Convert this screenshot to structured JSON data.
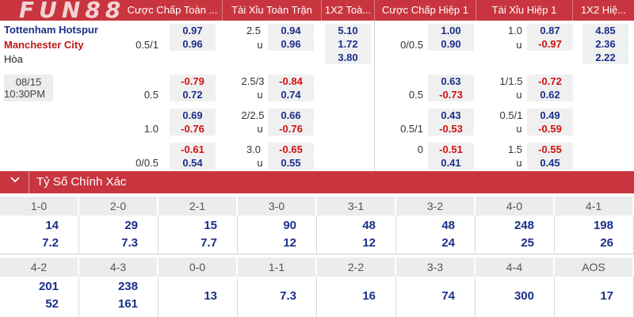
{
  "header": {
    "logo": "FUN88",
    "columns": [
      "Cược Chấp Toàn ...",
      "Tài Xỉu Toàn Trận",
      "1X2 Toà...",
      "Cược Chấp Hiệp 1",
      "Tài Xỉu Hiệp 1",
      "1X2 Hiệ..."
    ]
  },
  "match": {
    "home": "Tottenham Hotspur",
    "away": "Manchester City",
    "draw_label": "Hòa",
    "date": "08/15",
    "time": "10:30PM"
  },
  "odds_rows": [
    {
      "ft_hdp": {
        "line": "",
        "top": "0.97",
        "bot": "0.96",
        "top_line": "",
        "bot_line": "0.5/1"
      },
      "ft_ou": {
        "line": "2.5",
        "top": "0.94",
        "bot": "0.96",
        "u": "u"
      },
      "ft_1x2": [
        "5.10",
        "1.72",
        "3.80"
      ],
      "h1_hdp": {
        "top": "1.00",
        "bot": "0.90",
        "bot_line": "0/0.5"
      },
      "h1_ou": {
        "line": "1.0",
        "top": "0.87",
        "bot": "-0.97",
        "u": "u"
      },
      "h1_1x2": [
        "4.85",
        "2.36",
        "2.22"
      ]
    },
    {
      "ft_hdp": {
        "top": "-0.79",
        "bot": "0.72",
        "bot_line": "0.5"
      },
      "ft_ou": {
        "line": "2.5/3",
        "top": "-0.84",
        "bot": "0.74",
        "u": "u"
      },
      "h1_hdp": {
        "top": "0.63",
        "bot": "-0.73",
        "bot_line": "0.5"
      },
      "h1_ou": {
        "line": "1/1.5",
        "top": "-0.72",
        "bot": "0.62",
        "u": "u"
      }
    },
    {
      "ft_hdp": {
        "top": "0.69",
        "bot": "-0.76",
        "bot_line": "1.0"
      },
      "ft_ou": {
        "line": "2/2.5",
        "top": "0.66",
        "bot": "-0.76",
        "u": "u"
      },
      "h1_hdp": {
        "top": "0.43",
        "bot": "-0.53",
        "bot_line": "0.5/1"
      },
      "h1_ou": {
        "line": "0.5/1",
        "top": "0.49",
        "bot": "-0.59",
        "u": "u"
      }
    },
    {
      "ft_hdp": {
        "top": "-0.61",
        "bot": "0.54",
        "bot_line": "0/0.5"
      },
      "ft_ou": {
        "line": "3.0",
        "top": "-0.65",
        "bot": "0.55",
        "u": "u"
      },
      "h1_hdp": {
        "top": "-0.51",
        "bot": "0.41",
        "top_line": "0"
      },
      "h1_ou": {
        "line": "1.5",
        "top": "-0.55",
        "bot": "0.45",
        "u": "u"
      }
    }
  ],
  "exact_score": {
    "title": "Tỷ Số Chính Xác",
    "row1": [
      {
        "score": "1-0",
        "home": "14",
        "away": "7.2"
      },
      {
        "score": "2-0",
        "home": "29",
        "away": "7.3"
      },
      {
        "score": "2-1",
        "home": "15",
        "away": "7.7"
      },
      {
        "score": "3-0",
        "home": "90",
        "away": "12"
      },
      {
        "score": "3-1",
        "home": "48",
        "away": "12"
      },
      {
        "score": "3-2",
        "home": "48",
        "away": "24"
      },
      {
        "score": "4-0",
        "home": "248",
        "away": "25"
      },
      {
        "score": "4-1",
        "home": "198",
        "away": "26"
      }
    ],
    "row2": [
      {
        "score": "4-2",
        "home": "201",
        "away": "52"
      },
      {
        "score": "4-3",
        "home": "238",
        "away": "161"
      },
      {
        "score": "0-0",
        "single": "13"
      },
      {
        "score": "1-1",
        "single": "7.3"
      },
      {
        "score": "2-2",
        "single": "16"
      },
      {
        "score": "3-3",
        "single": "74"
      },
      {
        "score": "4-4",
        "single": "300"
      },
      {
        "score": "AOS",
        "single": "17"
      }
    ]
  },
  "colors": {
    "accent": "#c9353f",
    "odds_blue": "#1b2f8a",
    "odds_red": "#d01010"
  }
}
